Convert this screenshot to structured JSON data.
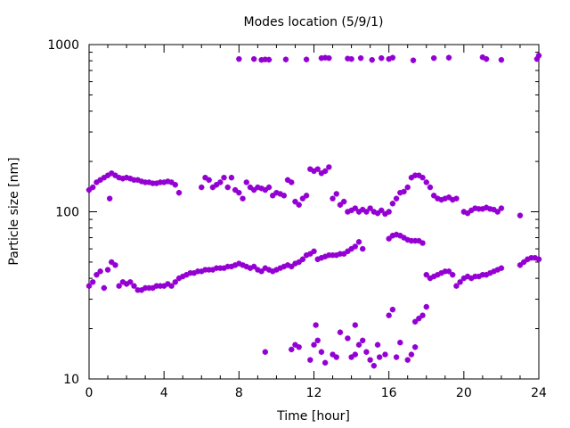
{
  "chart_data": {
    "type": "scatter",
    "title": "Modes location (5/9/1)",
    "xlabel": "Time [hour]",
    "ylabel": "Particle size [nm]",
    "xlim": [
      0,
      24
    ],
    "ylim": [
      10,
      1000
    ],
    "yscale": "log",
    "grid": false,
    "legend": "none",
    "marker": "asterisk",
    "color": "#9400d3",
    "x_ticks": [
      0,
      4,
      8,
      12,
      16,
      20,
      24
    ],
    "y_ticks": [
      10,
      100,
      1000
    ],
    "series": [
      {
        "points": [
          [
            0.0,
            135
          ],
          [
            0.2,
            140
          ],
          [
            0.4,
            150
          ],
          [
            0.6,
            155
          ],
          [
            0.8,
            160
          ],
          [
            1.0,
            165
          ],
          [
            1.1,
            120
          ],
          [
            1.2,
            170
          ],
          [
            1.4,
            165
          ],
          [
            1.6,
            160
          ],
          [
            1.8,
            158
          ],
          [
            2.0,
            160
          ],
          [
            2.2,
            158
          ],
          [
            2.4,
            155
          ],
          [
            2.6,
            155
          ],
          [
            2.8,
            152
          ],
          [
            3.0,
            150
          ],
          [
            3.2,
            150
          ],
          [
            3.4,
            148
          ],
          [
            3.6,
            148
          ],
          [
            3.8,
            150
          ],
          [
            4.0,
            150
          ],
          [
            4.2,
            152
          ],
          [
            4.4,
            150
          ],
          [
            4.6,
            145
          ],
          [
            4.8,
            130
          ],
          [
            6.0,
            140
          ],
          [
            6.2,
            160
          ],
          [
            6.4,
            155
          ],
          [
            6.6,
            140
          ],
          [
            6.8,
            145
          ],
          [
            7.0,
            150
          ],
          [
            7.2,
            160
          ],
          [
            7.4,
            140
          ],
          [
            7.6,
            160
          ],
          [
            7.8,
            135
          ],
          [
            8.0,
            130
          ],
          [
            8.2,
            120
          ],
          [
            8.4,
            150
          ],
          [
            8.6,
            140
          ],
          [
            8.8,
            135
          ],
          [
            9.0,
            140
          ],
          [
            9.2,
            138
          ],
          [
            9.4,
            135
          ],
          [
            9.6,
            140
          ],
          [
            9.8,
            125
          ],
          [
            10.0,
            130
          ],
          [
            10.2,
            128
          ],
          [
            10.4,
            125
          ],
          [
            10.6,
            155
          ],
          [
            10.8,
            150
          ],
          [
            11.0,
            115
          ],
          [
            11.2,
            110
          ],
          [
            11.4,
            120
          ],
          [
            11.6,
            125
          ],
          [
            11.8,
            180
          ],
          [
            12.0,
            175
          ],
          [
            12.2,
            180
          ],
          [
            12.4,
            170
          ],
          [
            12.6,
            175
          ],
          [
            12.8,
            185
          ],
          [
            13.0,
            120
          ],
          [
            13.2,
            128
          ],
          [
            13.4,
            110
          ],
          [
            13.6,
            115
          ],
          [
            13.8,
            100
          ],
          [
            14.0,
            102
          ],
          [
            14.2,
            105
          ],
          [
            14.4,
            100
          ],
          [
            14.6,
            103
          ],
          [
            14.8,
            100
          ],
          [
            15.0,
            105
          ],
          [
            15.2,
            100
          ],
          [
            15.4,
            98
          ],
          [
            15.6,
            102
          ],
          [
            15.8,
            97
          ],
          [
            16.0,
            100
          ],
          [
            16.2,
            112
          ],
          [
            16.4,
            120
          ],
          [
            16.6,
            130
          ],
          [
            16.8,
            132
          ],
          [
            17.0,
            140
          ],
          [
            17.2,
            160
          ],
          [
            17.4,
            165
          ],
          [
            17.6,
            165
          ],
          [
            17.8,
            160
          ],
          [
            18.0,
            150
          ],
          [
            18.2,
            140
          ],
          [
            18.4,
            125
          ],
          [
            18.6,
            120
          ],
          [
            18.8,
            118
          ],
          [
            19.0,
            120
          ],
          [
            19.2,
            122
          ],
          [
            19.4,
            118
          ],
          [
            19.6,
            120
          ],
          [
            20.0,
            100
          ],
          [
            20.2,
            98
          ],
          [
            20.4,
            102
          ],
          [
            20.6,
            105
          ],
          [
            20.8,
            104
          ],
          [
            21.0,
            104
          ],
          [
            21.2,
            106
          ],
          [
            21.4,
            104
          ],
          [
            21.6,
            103
          ],
          [
            21.8,
            100
          ],
          [
            22.0,
            105
          ],
          [
            23.0,
            95
          ]
        ]
      },
      {
        "points": [
          [
            0.0,
            36
          ],
          [
            0.2,
            38
          ],
          [
            0.4,
            42
          ],
          [
            0.6,
            44
          ],
          [
            0.8,
            35
          ],
          [
            1.0,
            45
          ],
          [
            1.2,
            50
          ],
          [
            1.4,
            48
          ],
          [
            1.6,
            36
          ],
          [
            1.8,
            38
          ],
          [
            2.0,
            37
          ],
          [
            2.2,
            38
          ],
          [
            2.4,
            36
          ],
          [
            2.6,
            34
          ],
          [
            2.8,
            34
          ],
          [
            3.0,
            35
          ],
          [
            3.2,
            35
          ],
          [
            3.4,
            35
          ],
          [
            3.6,
            36
          ],
          [
            3.8,
            36
          ],
          [
            4.0,
            36
          ],
          [
            4.2,
            37
          ],
          [
            4.4,
            36
          ],
          [
            4.6,
            38
          ],
          [
            4.8,
            40
          ],
          [
            5.0,
            41
          ],
          [
            5.2,
            42
          ],
          [
            5.4,
            43
          ],
          [
            5.6,
            43
          ],
          [
            5.8,
            44
          ],
          [
            6.0,
            44
          ],
          [
            6.2,
            45
          ],
          [
            6.4,
            45
          ],
          [
            6.6,
            45
          ],
          [
            6.8,
            46
          ],
          [
            7.0,
            46
          ],
          [
            7.2,
            46
          ],
          [
            7.4,
            47
          ],
          [
            7.6,
            47
          ],
          [
            7.8,
            48
          ],
          [
            8.0,
            49
          ],
          [
            8.2,
            48
          ],
          [
            8.4,
            47
          ],
          [
            8.6,
            46
          ],
          [
            8.8,
            47
          ],
          [
            9.0,
            45
          ],
          [
            9.2,
            44
          ],
          [
            9.4,
            46
          ],
          [
            9.6,
            45
          ],
          [
            9.8,
            44
          ],
          [
            10.0,
            45
          ],
          [
            10.2,
            46
          ],
          [
            10.4,
            47
          ],
          [
            10.6,
            48
          ],
          [
            10.8,
            47
          ],
          [
            11.0,
            49
          ],
          [
            11.2,
            50
          ],
          [
            11.4,
            52
          ],
          [
            11.6,
            55
          ],
          [
            11.8,
            56
          ],
          [
            12.0,
            58
          ],
          [
            12.2,
            52
          ],
          [
            12.4,
            53
          ],
          [
            12.6,
            54
          ],
          [
            12.8,
            55
          ],
          [
            13.0,
            55
          ],
          [
            13.2,
            55
          ],
          [
            13.4,
            56
          ],
          [
            13.6,
            56
          ],
          [
            13.8,
            58
          ],
          [
            14.0,
            60
          ],
          [
            14.2,
            62
          ],
          [
            14.4,
            66
          ],
          [
            14.6,
            60
          ],
          [
            16.0,
            69
          ],
          [
            16.2,
            72
          ],
          [
            16.4,
            73
          ],
          [
            16.6,
            72
          ],
          [
            16.8,
            70
          ],
          [
            17.0,
            68
          ],
          [
            17.2,
            67
          ],
          [
            17.4,
            67
          ],
          [
            17.6,
            67
          ],
          [
            17.8,
            65
          ],
          [
            18.0,
            42
          ],
          [
            18.2,
            40
          ],
          [
            18.4,
            41
          ],
          [
            18.6,
            42
          ],
          [
            18.8,
            43
          ],
          [
            19.0,
            44
          ],
          [
            19.2,
            44
          ],
          [
            19.4,
            42
          ],
          [
            19.6,
            36
          ],
          [
            19.8,
            38
          ],
          [
            20.0,
            40
          ],
          [
            20.2,
            41
          ],
          [
            20.4,
            40
          ],
          [
            20.6,
            41
          ],
          [
            20.8,
            41
          ],
          [
            21.0,
            42
          ],
          [
            21.2,
            42
          ],
          [
            21.4,
            43
          ],
          [
            21.6,
            44
          ],
          [
            21.8,
            45
          ],
          [
            22.0,
            46
          ],
          [
            23.0,
            48
          ],
          [
            23.2,
            50
          ],
          [
            23.4,
            52
          ],
          [
            23.6,
            53
          ],
          [
            23.8,
            53
          ],
          [
            24.0,
            52
          ]
        ]
      },
      {
        "points": [
          [
            9.4,
            14.5
          ],
          [
            10.8,
            15
          ],
          [
            11.0,
            16
          ],
          [
            11.2,
            15.5
          ],
          [
            11.8,
            13
          ],
          [
            12.0,
            16
          ],
          [
            12.1,
            21
          ],
          [
            12.2,
            17
          ],
          [
            12.4,
            14.5
          ],
          [
            12.6,
            12.5
          ],
          [
            13.0,
            14
          ],
          [
            13.2,
            13.5
          ],
          [
            13.4,
            19
          ],
          [
            13.8,
            17.5
          ],
          [
            14.0,
            13.5
          ],
          [
            14.2,
            14
          ],
          [
            14.2,
            21
          ],
          [
            14.4,
            16
          ],
          [
            14.6,
            17
          ],
          [
            14.8,
            14.5
          ],
          [
            15.0,
            13
          ],
          [
            15.2,
            12
          ],
          [
            15.4,
            16
          ],
          [
            15.5,
            13.5
          ],
          [
            15.8,
            14
          ],
          [
            16.0,
            24
          ],
          [
            16.2,
            26
          ],
          [
            16.4,
            13.5
          ],
          [
            16.6,
            16.5
          ],
          [
            17.0,
            13
          ],
          [
            17.2,
            14
          ],
          [
            17.4,
            15.5
          ],
          [
            17.4,
            22
          ],
          [
            17.6,
            23
          ],
          [
            17.8,
            24
          ],
          [
            18.0,
            27
          ]
        ]
      },
      {
        "points": [
          [
            8.0,
            820
          ],
          [
            8.8,
            820
          ],
          [
            9.2,
            810
          ],
          [
            9.4,
            815
          ],
          [
            9.6,
            812
          ],
          [
            10.5,
            815
          ],
          [
            11.6,
            815
          ],
          [
            12.4,
            830
          ],
          [
            12.6,
            835
          ],
          [
            12.8,
            830
          ],
          [
            13.8,
            825
          ],
          [
            14.0,
            820
          ],
          [
            14.5,
            830
          ],
          [
            15.1,
            810
          ],
          [
            15.6,
            830
          ],
          [
            16.0,
            820
          ],
          [
            16.2,
            835
          ],
          [
            17.3,
            805
          ],
          [
            18.4,
            830
          ],
          [
            19.2,
            835
          ],
          [
            21.0,
            840
          ],
          [
            21.2,
            820
          ],
          [
            22.0,
            810
          ],
          [
            23.9,
            820
          ],
          [
            24.0,
            860
          ]
        ]
      }
    ]
  }
}
